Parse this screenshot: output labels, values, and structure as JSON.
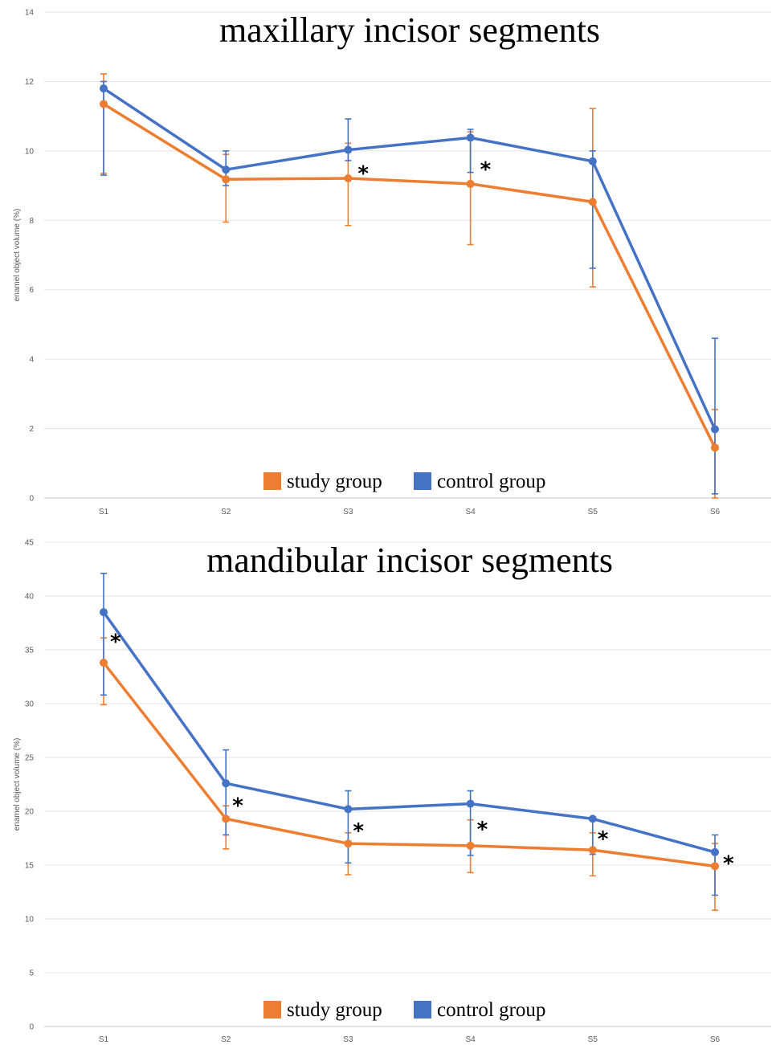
{
  "chart_data": [
    {
      "type": "line",
      "title": "maxillary incisor segments",
      "xlabel": "",
      "ylabel": "enamel object volume (%)",
      "categories": [
        "S1",
        "S2",
        "S3",
        "S4",
        "S5",
        "S6"
      ],
      "ylim": [
        0,
        14
      ],
      "yticks": [
        0,
        2,
        4,
        6,
        8,
        10,
        12,
        14
      ],
      "grid": true,
      "legend_position": "bottom-center",
      "series": [
        {
          "name": "study group",
          "color": "#ED7D31",
          "values": [
            11.35,
            9.18,
            9.21,
            9.05,
            8.53,
            1.45
          ],
          "error_low": [
            9.35,
            7.95,
            7.85,
            7.3,
            6.08,
            0.0
          ],
          "error_high": [
            12.22,
            9.9,
            10.22,
            10.55,
            11.22,
            2.55
          ]
        },
        {
          "name": "control group",
          "color": "#4472C4",
          "values": [
            11.8,
            9.46,
            10.03,
            10.38,
            9.7,
            1.98
          ],
          "error_low": [
            9.3,
            9.0,
            9.72,
            9.38,
            6.62,
            0.12
          ],
          "error_high": [
            12.0,
            10.0,
            10.92,
            10.62,
            10.0,
            4.6
          ]
        }
      ],
      "significance_markers": [
        {
          "category": "S3",
          "label": "*"
        },
        {
          "category": "S4",
          "label": "*"
        }
      ]
    },
    {
      "type": "line",
      "title": "mandibular incisor segments",
      "xlabel": "",
      "ylabel": "enamel object volume (%)",
      "categories": [
        "S1",
        "S2",
        "S3",
        "S4",
        "S5",
        "S6"
      ],
      "ylim": [
        0,
        45
      ],
      "yticks": [
        0,
        5,
        10,
        15,
        20,
        25,
        30,
        35,
        40,
        45
      ],
      "grid": true,
      "legend_position": "bottom-center",
      "series": [
        {
          "name": "study group",
          "color": "#ED7D31",
          "values": [
            33.8,
            19.3,
            17.0,
            16.8,
            16.4,
            14.9
          ],
          "error_low": [
            29.9,
            16.5,
            14.1,
            14.3,
            14.0,
            10.8
          ],
          "error_high": [
            36.1,
            20.5,
            18.0,
            19.2,
            18.0,
            17.0
          ]
        },
        {
          "name": "control group",
          "color": "#4472C4",
          "values": [
            38.5,
            22.6,
            20.2,
            20.7,
            19.3,
            16.2
          ],
          "error_low": [
            30.8,
            17.8,
            15.2,
            15.9,
            16.0,
            12.2
          ],
          "error_high": [
            42.1,
            25.7,
            21.9,
            21.9,
            19.3,
            17.8
          ]
        }
      ],
      "significance_markers": [
        {
          "category": "S1",
          "label": "*"
        },
        {
          "category": "S2",
          "label": "*"
        },
        {
          "category": "S3",
          "label": "*"
        },
        {
          "category": "S4",
          "label": "*"
        },
        {
          "category": "S5",
          "label": "*"
        },
        {
          "category": "S6",
          "label": "*"
        }
      ]
    }
  ]
}
